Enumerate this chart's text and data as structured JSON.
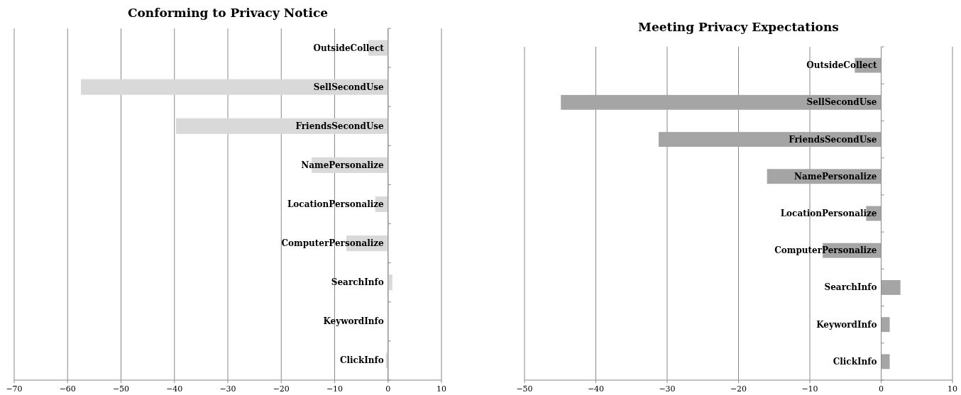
{
  "chart_data": [
    {
      "type": "bar",
      "orientation": "horizontal",
      "title": "Conforming to Privacy Notice",
      "categories": [
        "OutsideCollect",
        "SellSecondUse",
        "FriendsSecondUse",
        "NamePersonalize",
        "LocationPersonalize",
        "ComputerPersonalize",
        "SearchInfo",
        "KeywordInfo",
        "ClickInfo"
      ],
      "values": [
        -3.7,
        -57.5,
        -39.7,
        -14.3,
        -2.4,
        -7.8,
        0.8,
        0.1,
        -0.4
      ],
      "color": "#d9d9d9",
      "xlim": [
        -70,
        10
      ],
      "xticks": [
        {
          "value": -70,
          "label": "−70"
        },
        {
          "value": -60,
          "label": "−60"
        },
        {
          "value": -50,
          "label": "−50"
        },
        {
          "value": -40,
          "label": "−40"
        },
        {
          "value": -30,
          "label": "−30"
        },
        {
          "value": -20,
          "label": "−20"
        },
        {
          "value": -10,
          "label": "−10"
        },
        {
          "value": 0,
          "label": "0"
        },
        {
          "value": 10,
          "label": "10"
        }
      ],
      "grid": "x"
    },
    {
      "type": "bar",
      "orientation": "horizontal",
      "title": "Meeting Privacy Expectations",
      "categories": [
        "OutsideCollect",
        "SellSecondUse",
        "FriendsSecondUse",
        "NamePersonalize",
        "LocationPersonalize",
        "ComputerPersonalize",
        "SearchInfo",
        "KeywordInfo",
        "ClickInfo"
      ],
      "values": [
        -3.7,
        -44.9,
        -31.2,
        -16.0,
        -2.1,
        -8.2,
        2.7,
        1.2,
        1.2
      ],
      "color": "#a5a5a5",
      "xlim": [
        -50,
        10
      ],
      "xticks": [
        {
          "value": -50,
          "label": "−50"
        },
        {
          "value": -40,
          "label": "−40"
        },
        {
          "value": -30,
          "label": "−30"
        },
        {
          "value": -20,
          "label": "−20"
        },
        {
          "value": -10,
          "label": "−10"
        },
        {
          "value": 0,
          "label": "0"
        },
        {
          "value": 10,
          "label": "10"
        }
      ],
      "grid": "x"
    }
  ]
}
